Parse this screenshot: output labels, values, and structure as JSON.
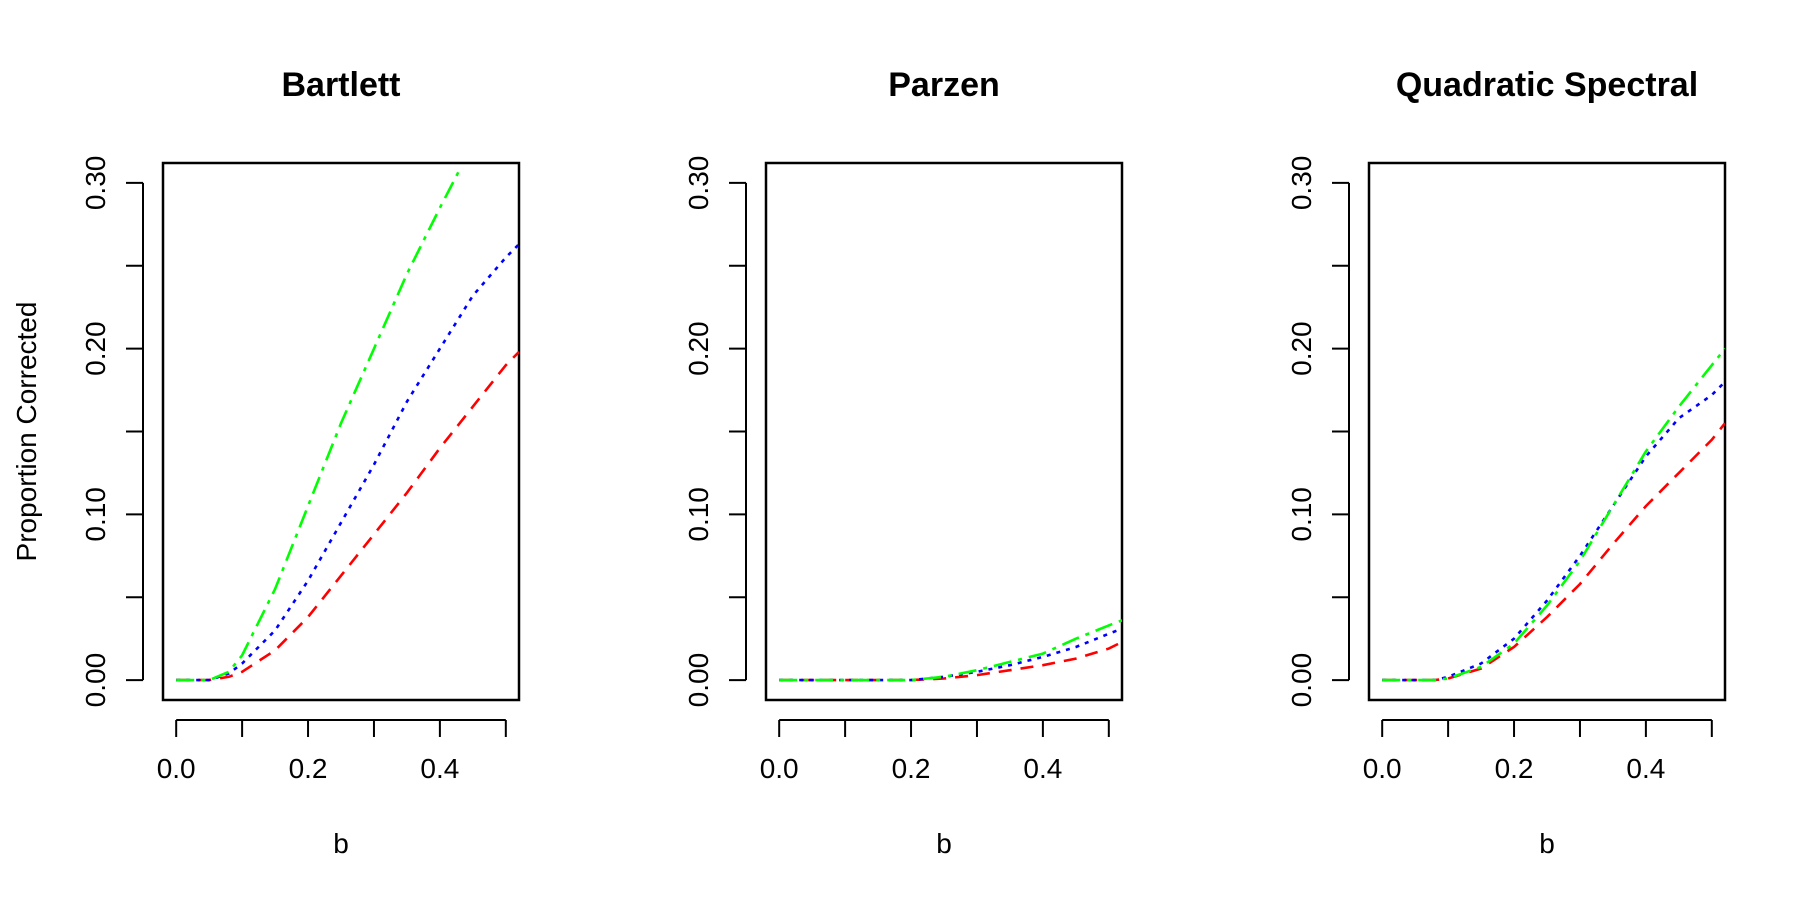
{
  "chart_data": [
    {
      "type": "line",
      "title": "Bartlett",
      "xlabel": "b",
      "ylabel": "Proportion Corrected",
      "xlim": [
        -0.02,
        0.52
      ],
      "ylim": [
        -0.012,
        0.312
      ],
      "xticks": [
        "0.0",
        "0.2",
        "0.4"
      ],
      "xtick_values": [
        0.0,
        0.1,
        0.2,
        0.3,
        0.4,
        0.5
      ],
      "xtick_labels": [
        "0.0",
        "",
        "0.2",
        "",
        "0.4",
        ""
      ],
      "yticks": [
        0.0,
        0.05,
        0.1,
        0.15,
        0.2,
        0.25,
        0.3
      ],
      "ytick_labels": [
        "0.00",
        "",
        "0.10",
        "",
        "0.20",
        "",
        "0.30"
      ],
      "grid": false,
      "series": [
        {
          "color": "#ff0000",
          "dash": "dashed",
          "x": [
            0.0,
            0.05,
            0.08,
            0.1,
            0.15,
            0.2,
            0.25,
            0.3,
            0.35,
            0.4,
            0.45,
            0.5,
            0.52
          ],
          "y": [
            0.0,
            0.0,
            0.002,
            0.005,
            0.018,
            0.038,
            0.063,
            0.088,
            0.113,
            0.14,
            0.165,
            0.19,
            0.198
          ]
        },
        {
          "color": "#0000ff",
          "dash": "dotted",
          "x": [
            0.0,
            0.05,
            0.08,
            0.1,
            0.15,
            0.2,
            0.25,
            0.3,
            0.35,
            0.4,
            0.45,
            0.5,
            0.52
          ],
          "y": [
            0.0,
            0.0,
            0.004,
            0.01,
            0.03,
            0.06,
            0.095,
            0.13,
            0.168,
            0.2,
            0.232,
            0.255,
            0.263
          ]
        },
        {
          "color": "#00ff00",
          "dash": "dotdash",
          "x": [
            0.0,
            0.05,
            0.08,
            0.1,
            0.15,
            0.2,
            0.25,
            0.3,
            0.35,
            0.4,
            0.43
          ],
          "y": [
            0.0,
            0.0,
            0.005,
            0.015,
            0.055,
            0.105,
            0.155,
            0.2,
            0.245,
            0.285,
            0.308
          ]
        }
      ]
    },
    {
      "type": "line",
      "title": "Parzen",
      "xlabel": "b",
      "ylabel": "",
      "xlim": [
        -0.02,
        0.52
      ],
      "ylim": [
        -0.012,
        0.312
      ],
      "xtick_values": [
        0.0,
        0.1,
        0.2,
        0.3,
        0.4,
        0.5
      ],
      "xtick_labels": [
        "0.0",
        "",
        "0.2",
        "",
        "0.4",
        ""
      ],
      "yticks": [
        0.0,
        0.05,
        0.1,
        0.15,
        0.2,
        0.25,
        0.3
      ],
      "ytick_labels": [
        "0.00",
        "",
        "0.10",
        "",
        "0.20",
        "",
        "0.30"
      ],
      "grid": false,
      "series": [
        {
          "color": "#ff0000",
          "dash": "dashed",
          "x": [
            0.0,
            0.1,
            0.2,
            0.25,
            0.3,
            0.35,
            0.4,
            0.45,
            0.5,
            0.52
          ],
          "y": [
            0.0,
            0.0,
            0.0,
            0.001,
            0.003,
            0.006,
            0.009,
            0.013,
            0.019,
            0.023
          ]
        },
        {
          "color": "#0000ff",
          "dash": "dotted",
          "x": [
            0.0,
            0.1,
            0.2,
            0.25,
            0.3,
            0.35,
            0.4,
            0.45,
            0.5,
            0.52
          ],
          "y": [
            0.0,
            0.0,
            0.0,
            0.002,
            0.005,
            0.009,
            0.014,
            0.02,
            0.028,
            0.031
          ]
        },
        {
          "color": "#00ff00",
          "dash": "dotdash",
          "x": [
            0.0,
            0.1,
            0.2,
            0.25,
            0.3,
            0.35,
            0.4,
            0.45,
            0.5,
            0.52
          ],
          "y": [
            0.0,
            0.0,
            0.0,
            0.002,
            0.006,
            0.011,
            0.016,
            0.025,
            0.033,
            0.036
          ]
        }
      ]
    },
    {
      "type": "line",
      "title": "Quadratic Spectral",
      "xlabel": "b",
      "ylabel": "",
      "xlim": [
        -0.02,
        0.52
      ],
      "ylim": [
        -0.012,
        0.312
      ],
      "xtick_values": [
        0.0,
        0.1,
        0.2,
        0.3,
        0.4,
        0.5
      ],
      "xtick_labels": [
        "0.0",
        "",
        "0.2",
        "",
        "0.4",
        ""
      ],
      "yticks": [
        0.0,
        0.05,
        0.1,
        0.15,
        0.2,
        0.25,
        0.3
      ],
      "ytick_labels": [
        "0.00",
        "",
        "0.10",
        "",
        "0.20",
        "",
        "0.30"
      ],
      "grid": false,
      "series": [
        {
          "color": "#ff0000",
          "dash": "dashed",
          "x": [
            0.0,
            0.05,
            0.08,
            0.1,
            0.15,
            0.2,
            0.25,
            0.3,
            0.35,
            0.4,
            0.45,
            0.5,
            0.52
          ],
          "y": [
            0.0,
            0.0,
            0.0,
            0.001,
            0.007,
            0.02,
            0.038,
            0.058,
            0.082,
            0.105,
            0.125,
            0.145,
            0.155
          ]
        },
        {
          "color": "#0000ff",
          "dash": "dotted",
          "x": [
            0.0,
            0.05,
            0.08,
            0.1,
            0.15,
            0.2,
            0.25,
            0.3,
            0.35,
            0.4,
            0.45,
            0.5,
            0.52
          ],
          "y": [
            0.0,
            0.0,
            0.0,
            0.002,
            0.01,
            0.025,
            0.048,
            0.075,
            0.105,
            0.135,
            0.158,
            0.172,
            0.18
          ]
        },
        {
          "color": "#00ff00",
          "dash": "dotdash",
          "x": [
            0.0,
            0.05,
            0.08,
            0.1,
            0.15,
            0.2,
            0.25,
            0.3,
            0.35,
            0.4,
            0.45,
            0.5,
            0.52
          ],
          "y": [
            0.0,
            0.0,
            0.0,
            0.001,
            0.008,
            0.022,
            0.045,
            0.072,
            0.105,
            0.138,
            0.165,
            0.19,
            0.2
          ]
        }
      ]
    }
  ]
}
